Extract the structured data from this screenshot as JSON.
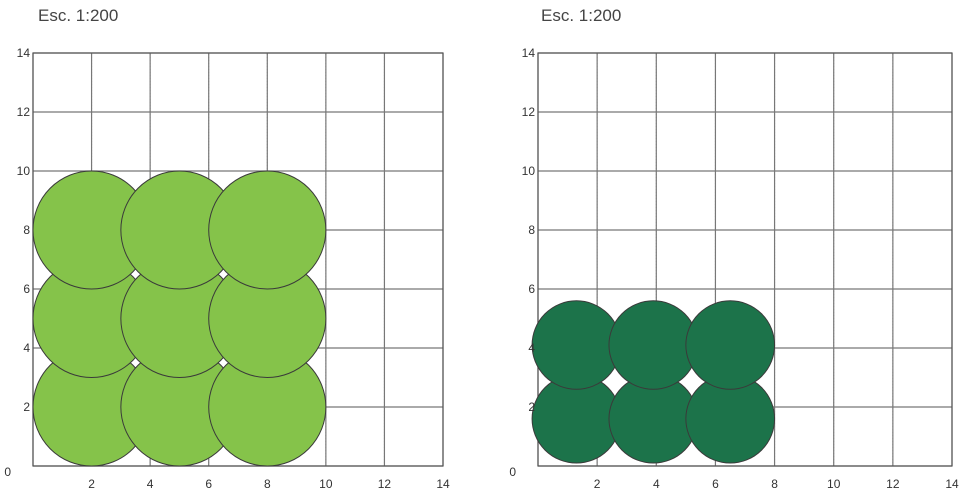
{
  "panels": [
    {
      "scale_label": "Esc. 1:200",
      "axis_range": [
        0,
        14
      ],
      "x_ticks": [
        "0",
        "2",
        "4",
        "6",
        "8",
        "10",
        "12",
        "14"
      ],
      "y_ticks": [
        "0",
        "2",
        "4",
        "6",
        "8",
        "10",
        "12",
        "14"
      ],
      "grid": "dotted-and-solid every 2 units",
      "circle_color": "#85c34a",
      "circle_diameter": 4,
      "circles": [
        {
          "cx": 2,
          "cy": 2
        },
        {
          "cx": 5,
          "cy": 2
        },
        {
          "cx": 8,
          "cy": 2
        },
        {
          "cx": 2,
          "cy": 5
        },
        {
          "cx": 5,
          "cy": 5
        },
        {
          "cx": 8,
          "cy": 5
        },
        {
          "cx": 2,
          "cy": 8
        },
        {
          "cx": 5,
          "cy": 8
        },
        {
          "cx": 8,
          "cy": 8
        }
      ]
    },
    {
      "scale_label": "Esc. 1:200",
      "axis_range": [
        0,
        14
      ],
      "x_ticks": [
        "0",
        "2",
        "4",
        "6",
        "8",
        "10",
        "12",
        "14"
      ],
      "y_ticks": [
        "0",
        "2",
        "4",
        "6",
        "8",
        "10",
        "12",
        "14"
      ],
      "grid": "dotted-and-solid every 2 units",
      "circle_color": "#1c734a",
      "circle_diameter": 3,
      "circles": [
        {
          "cx": 1.3,
          "cy": 1.6
        },
        {
          "cx": 3.9,
          "cy": 1.6
        },
        {
          "cx": 6.5,
          "cy": 1.6
        },
        {
          "cx": 1.3,
          "cy": 4.1
        },
        {
          "cx": 3.9,
          "cy": 4.1
        },
        {
          "cx": 6.5,
          "cy": 4.1
        }
      ]
    }
  ]
}
